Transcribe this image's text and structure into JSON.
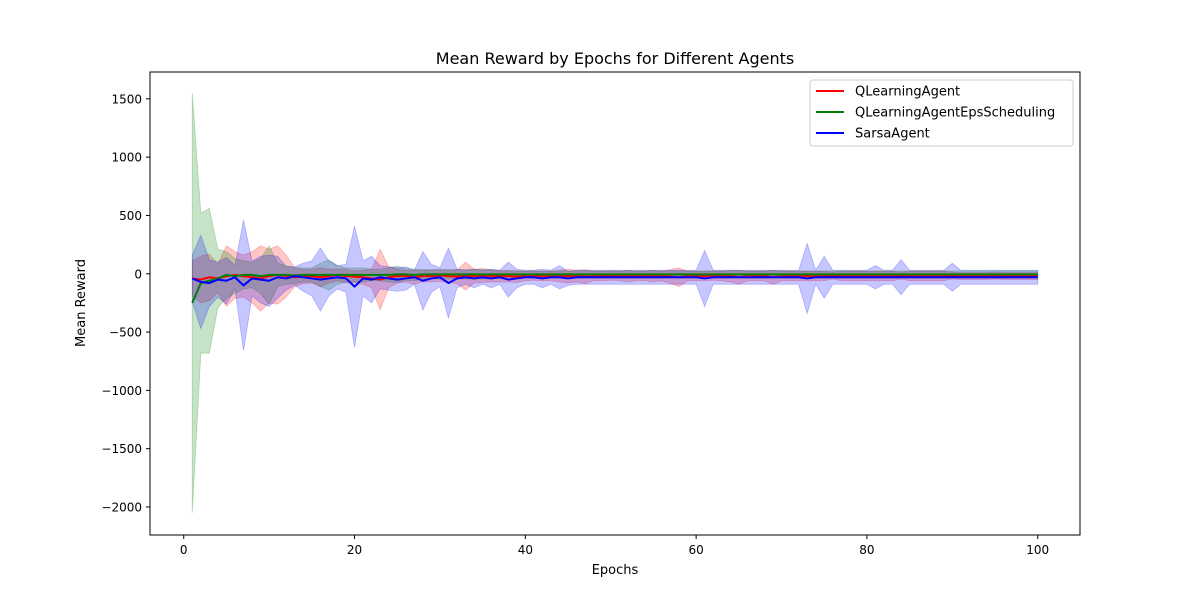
{
  "chart_data": {
    "type": "line",
    "title": "Mean Reward by Epochs for Different Agents",
    "xlabel": "Epochs",
    "ylabel": "Mean Reward",
    "xlim": [
      -3.95,
      104.95
    ],
    "ylim": [
      -2240,
      1730
    ],
    "xticks": [
      0,
      20,
      40,
      60,
      80,
      100
    ],
    "yticks": [
      1500,
      1000,
      500,
      0,
      -500,
      -1000,
      -1500,
      -2000
    ],
    "xtick_labels": [
      "0",
      "20",
      "40",
      "60",
      "80",
      "100"
    ],
    "ytick_labels": [
      "1500",
      "1000",
      "500",
      "0",
      "−500",
      "−1000",
      "−1500",
      "−2000"
    ],
    "grid": false,
    "legend_position": "top-right",
    "series": [
      {
        "name": "QLearningAgent",
        "color": "#ff0000",
        "mean": [
          -40,
          -50,
          -30,
          -40,
          -20,
          -10,
          -20,
          -30,
          -40,
          -20,
          -10,
          -20,
          -30,
          -25,
          -20,
          -30,
          -20,
          -10,
          -20,
          -25,
          -30,
          -40,
          -50,
          -30,
          -20,
          -20,
          -30,
          -20,
          -20,
          -15,
          -20,
          -25,
          -20,
          -20,
          -15,
          -20,
          -20,
          -20,
          -25,
          -20,
          -15,
          -20,
          -20,
          -20,
          -20,
          -20,
          -25,
          -20,
          -20,
          -15,
          -20,
          -20,
          -20,
          -20,
          -20,
          -20,
          -25,
          -30,
          -20,
          -20,
          -20,
          -15,
          -20,
          -20,
          -30,
          -20,
          -20,
          -20,
          -30,
          -20,
          -20,
          -20,
          -20,
          -20,
          -20,
          -15,
          -20,
          -20,
          -20,
          -20,
          -20,
          -20,
          -20,
          -15,
          -20,
          -20,
          -20,
          -20,
          -20,
          -15,
          -20,
          -20,
          -20,
          -20,
          -15,
          -20,
          -20,
          -20,
          -20,
          -20
        ],
        "band": [
          150,
          200,
          200,
          120,
          260,
          200,
          180,
          220,
          280,
          230,
          250,
          180,
          80,
          60,
          60,
          80,
          60,
          50,
          60,
          50,
          60,
          80,
          260,
          90,
          60,
          50,
          60,
          50,
          50,
          50,
          50,
          60,
          120,
          60,
          60,
          50,
          50,
          50,
          50,
          40,
          40,
          40,
          40,
          50,
          60,
          50,
          60,
          40,
          40,
          40,
          40,
          50,
          40,
          40,
          50,
          40,
          60,
          80,
          40,
          40,
          40,
          40,
          40,
          50,
          60,
          40,
          40,
          40,
          60,
          40,
          40,
          40,
          40,
          40,
          40,
          30,
          40,
          40,
          40,
          40,
          40,
          40,
          40,
          30,
          40,
          40,
          40,
          40,
          40,
          30,
          30,
          30,
          30,
          30,
          30,
          30,
          30,
          30,
          30,
          30
        ]
      },
      {
        "name": "QLearningAgentEpsScheduling",
        "color": "#008000",
        "mean": [
          -250,
          -80,
          -60,
          -40,
          -10,
          -20,
          -10,
          -10,
          -20,
          -10,
          -10,
          -10,
          -15,
          -10,
          -10,
          -10,
          -10,
          -10,
          -10,
          -10,
          -10,
          -10,
          -10,
          -10,
          -5,
          -5,
          -10,
          -5,
          -5,
          -5,
          -5,
          -5,
          -5,
          -5,
          -5,
          -5,
          -5,
          -5,
          -5,
          -5,
          -5,
          -5,
          -5,
          -5,
          -5,
          -5,
          -5,
          -5,
          -5,
          -5,
          -5,
          -5,
          -5,
          -5,
          -5,
          -5,
          -5,
          -5,
          -5,
          -5,
          -5,
          -5,
          -5,
          -5,
          -5,
          -5,
          -5,
          -5,
          -5,
          -5,
          -5,
          -5,
          -5,
          -5,
          -5,
          -5,
          -5,
          -5,
          -5,
          -5,
          -5,
          -5,
          -5,
          -5,
          -5,
          -5,
          -5,
          -5,
          -5,
          -5,
          -5,
          -5,
          -5,
          -5,
          -5,
          -5,
          -5,
          -5,
          -5,
          -5
        ],
        "band": [
          1800,
          600,
          620,
          250,
          200,
          150,
          120,
          110,
          150,
          250,
          100,
          80,
          70,
          60,
          60,
          100,
          130,
          80,
          60,
          60,
          60,
          50,
          50,
          60,
          70,
          50,
          50,
          40,
          40,
          40,
          40,
          40,
          40,
          40,
          40,
          40,
          30,
          30,
          30,
          30,
          30,
          30,
          30,
          30,
          30,
          30,
          30,
          30,
          30,
          30,
          30,
          30,
          30,
          30,
          30,
          30,
          30,
          30,
          30,
          30,
          30,
          30,
          30,
          30,
          30,
          30,
          30,
          30,
          30,
          30,
          30,
          30,
          30,
          30,
          30,
          30,
          30,
          30,
          30,
          30,
          30,
          30,
          30,
          30,
          30,
          30,
          30,
          30,
          30,
          30,
          30,
          30,
          30,
          30,
          30,
          30,
          30,
          30,
          30,
          30
        ]
      },
      {
        "name": "SarsaAgent",
        "color": "#0000ff",
        "mean": [
          -40,
          -70,
          -80,
          -50,
          -60,
          -30,
          -100,
          -40,
          -50,
          -60,
          -30,
          -40,
          -20,
          -30,
          -40,
          -50,
          -40,
          -30,
          -40,
          -110,
          -40,
          -50,
          -30,
          -40,
          -50,
          -40,
          -30,
          -60,
          -40,
          -30,
          -80,
          -40,
          -30,
          -40,
          -30,
          -40,
          -30,
          -50,
          -40,
          -30,
          -30,
          -40,
          -30,
          -30,
          -40,
          -30,
          -30,
          -30,
          -30,
          -30,
          -30,
          -30,
          -30,
          -30,
          -30,
          -30,
          -30,
          -30,
          -30,
          -30,
          -40,
          -30,
          -30,
          -30,
          -30,
          -30,
          -30,
          -30,
          -30,
          -30,
          -30,
          -30,
          -40,
          -30,
          -30,
          -30,
          -30,
          -30,
          -30,
          -30,
          -30,
          -30,
          -30,
          -30,
          -30,
          -30,
          -30,
          -30,
          -30,
          -30,
          -30,
          -30,
          -30,
          -30,
          -30,
          -30,
          -30,
          -30,
          -30,
          -30
        ],
        "band": [
          200,
          400,
          200,
          150,
          200,
          100,
          560,
          150,
          200,
          220,
          180,
          100,
          80,
          120,
          150,
          270,
          150,
          100,
          120,
          520,
          150,
          200,
          100,
          100,
          100,
          100,
          60,
          250,
          120,
          80,
          300,
          80,
          60,
          80,
          60,
          80,
          60,
          150,
          80,
          60,
          60,
          80,
          60,
          100,
          60,
          60,
          60,
          60,
          60,
          60,
          60,
          60,
          60,
          60,
          60,
          60,
          60,
          60,
          60,
          60,
          240,
          60,
          60,
          60,
          60,
          60,
          60,
          60,
          60,
          60,
          60,
          60,
          300,
          60,
          180,
          60,
          60,
          60,
          60,
          60,
          100,
          60,
          60,
          150,
          60,
          60,
          60,
          60,
          60,
          120,
          60,
          60,
          60,
          60,
          60,
          60,
          60,
          60,
          60,
          60
        ]
      }
    ]
  }
}
